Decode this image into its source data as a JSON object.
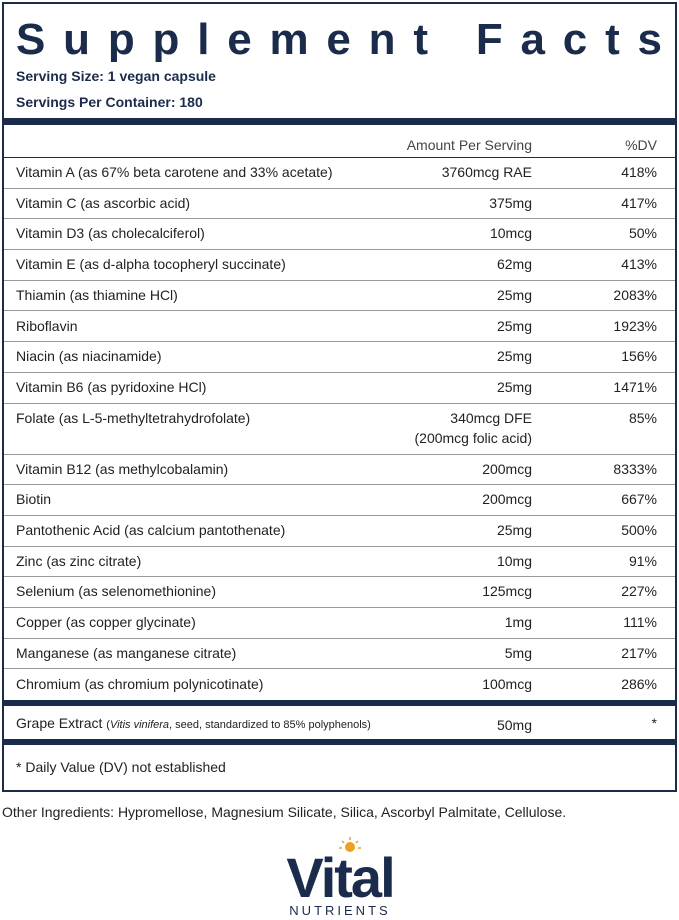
{
  "header": {
    "title": "Supplement Facts",
    "serving_size": "Serving Size: 1 vegan capsule",
    "servings_per_container": "Servings Per Container: 180"
  },
  "table": {
    "columns": [
      "Amount Per Serving",
      "%DV"
    ],
    "rows": [
      [
        "Vitamin A (as 67% beta carotene and 33% acetate)",
        [
          "3760mcg RAE"
        ],
        "418%"
      ],
      [
        "Vitamin C (as ascorbic acid)",
        [
          "375mg"
        ],
        "417%"
      ],
      [
        "Vitamin D3 (as cholecalciferol)",
        [
          "10mcg"
        ],
        "50%"
      ],
      [
        "Vitamin E (as d-alpha tocopheryl succinate)",
        [
          "62mg"
        ],
        "413%"
      ],
      [
        "Thiamin (as thiamine HCl)",
        [
          "25mg"
        ],
        "2083%"
      ],
      [
        "Riboflavin",
        [
          "25mg"
        ],
        "1923%"
      ],
      [
        "Niacin (as niacinamide)",
        [
          "25mg"
        ],
        "156%"
      ],
      [
        "Vitamin B6 (as pyridoxine HCl)",
        [
          "25mg"
        ],
        "1471%"
      ],
      [
        "Folate (as L-5-methyltetrahydrofolate)",
        [
          "340mcg DFE",
          "(200mcg folic acid)"
        ],
        "85%"
      ],
      [
        "Vitamin B12 (as methylcobalamin)",
        [
          "200mcg"
        ],
        "8333%"
      ],
      [
        "Biotin",
        [
          "200mcg"
        ],
        "667%"
      ],
      [
        "Pantothenic Acid (as calcium pantothenate)",
        [
          "25mg"
        ],
        "500%"
      ],
      [
        "Zinc (as zinc citrate)",
        [
          "10mg"
        ],
        "91%"
      ],
      [
        "Selenium (as selenomethionine)",
        [
          "125mcg"
        ],
        "227%"
      ],
      [
        "Copper (as copper glycinate)",
        [
          "1mg"
        ],
        "111%"
      ],
      [
        "Manganese (as manganese citrate)",
        [
          "5mg"
        ],
        "217%"
      ],
      [
        "Chromium (as chromium polynicotinate)",
        [
          "100mcg"
        ],
        "286%"
      ]
    ],
    "other": {
      "name": "Grape Extract",
      "detail": [
        "(",
        "Vitis vinifera",
        ", seed, standardized to 85% polyphenols)"
      ],
      "amount": "50mg",
      "dv": "*"
    }
  },
  "footnote": "* Daily Value (DV) not established",
  "other_ingredients": "Other Ingredients: Hypromellose, Magnesium Silicate, Silica, Ascorbyl Palmitate, Cellulose.",
  "logo": {
    "name": "Vital",
    "tagline": "NUTRIENTS"
  }
}
